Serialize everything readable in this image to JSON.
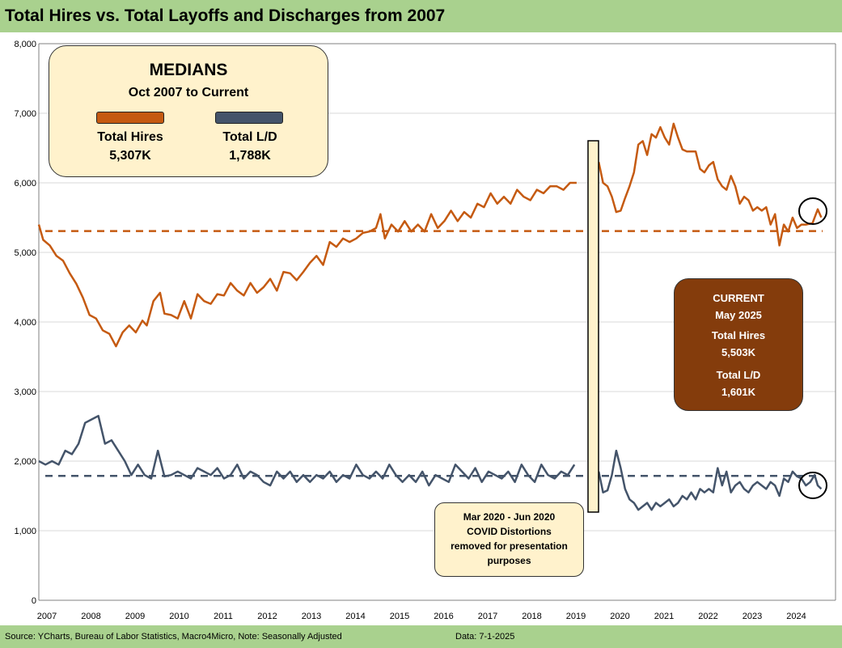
{
  "title": "Total Hires vs. Total Layoffs and Discharges from 2007",
  "footer": {
    "source": "Source: YCharts, Bureau of Labor Statistics, Macro4Micro, Note: Seasonally Adjusted",
    "data_date": "Data: 7-1-2025"
  },
  "medians_box": {
    "title": "MEDIANS",
    "subtitle": "Oct 2007 to Current",
    "hires_label": "Total Hires",
    "hires_value": "5,307K",
    "ld_label": "Total L/D",
    "ld_value": "1,788K"
  },
  "current_box": {
    "title": "CURRENT",
    "date": "May 2025",
    "hires_label": "Total Hires",
    "hires_value": "5,503K",
    "ld_label": "Total L/D",
    "ld_value": "1,601K"
  },
  "covid_box": {
    "line1": "Mar 2020 - Jun 2020",
    "line2": "COVID Distortions",
    "line3": "removed for presentation",
    "line4": "purposes"
  },
  "colors": {
    "hires": "#c55a11",
    "layoffs": "#44546a",
    "background": "#a9d18e",
    "current_box": "#843c0c",
    "note_box": "#fff2cc"
  },
  "chart_data": {
    "type": "line",
    "title": "Total Hires vs. Total Layoffs and Discharges from 2007",
    "xlabel": "",
    "ylabel": "",
    "ylim": [
      0,
      8000
    ],
    "y_ticks": [
      "0",
      "1,000",
      "2,000",
      "3,000",
      "4,000",
      "5,000",
      "6,000",
      "7,000",
      "8,000"
    ],
    "x_tick_labels": [
      "2007",
      "2008",
      "2009",
      "2010",
      "2011",
      "2012",
      "2013",
      "2014",
      "2015",
      "2016",
      "2017",
      "2018",
      "2019",
      "2020",
      "2021",
      "2022",
      "2023",
      "2024"
    ],
    "grid": true,
    "medians": {
      "hires": 5307,
      "layoffs": 1788
    },
    "series": [
      {
        "key": "hires",
        "points": [
          [
            2007.75,
            5400
          ],
          [
            2007.85,
            5180
          ],
          [
            2008.0,
            5100
          ],
          [
            2008.15,
            4950
          ],
          [
            2008.3,
            4880
          ],
          [
            2008.45,
            4700
          ],
          [
            2008.6,
            4550
          ],
          [
            2008.75,
            4350
          ],
          [
            2008.9,
            4100
          ],
          [
            2009.05,
            4050
          ],
          [
            2009.2,
            3880
          ],
          [
            2009.35,
            3830
          ],
          [
            2009.5,
            3650
          ],
          [
            2009.65,
            3850
          ],
          [
            2009.8,
            3950
          ],
          [
            2009.95,
            3850
          ],
          [
            2010.1,
            4020
          ],
          [
            2010.2,
            3950
          ],
          [
            2010.35,
            4300
          ],
          [
            2010.5,
            4420
          ],
          [
            2010.6,
            4120
          ],
          [
            2010.75,
            4100
          ],
          [
            2010.9,
            4050
          ],
          [
            2011.05,
            4300
          ],
          [
            2011.2,
            4050
          ],
          [
            2011.35,
            4400
          ],
          [
            2011.5,
            4300
          ],
          [
            2011.65,
            4260
          ],
          [
            2011.8,
            4400
          ],
          [
            2011.95,
            4380
          ],
          [
            2012.1,
            4560
          ],
          [
            2012.25,
            4450
          ],
          [
            2012.4,
            4380
          ],
          [
            2012.55,
            4560
          ],
          [
            2012.7,
            4420
          ],
          [
            2012.85,
            4500
          ],
          [
            2013.0,
            4620
          ],
          [
            2013.15,
            4450
          ],
          [
            2013.3,
            4720
          ],
          [
            2013.45,
            4700
          ],
          [
            2013.6,
            4600
          ],
          [
            2013.75,
            4720
          ],
          [
            2013.9,
            4850
          ],
          [
            2014.05,
            4950
          ],
          [
            2014.2,
            4820
          ],
          [
            2014.35,
            5150
          ],
          [
            2014.5,
            5080
          ],
          [
            2014.65,
            5200
          ],
          [
            2014.8,
            5150
          ],
          [
            2014.95,
            5200
          ],
          [
            2015.1,
            5280
          ],
          [
            2015.25,
            5300
          ],
          [
            2015.4,
            5350
          ],
          [
            2015.5,
            5550
          ],
          [
            2015.6,
            5200
          ],
          [
            2015.75,
            5400
          ],
          [
            2015.9,
            5300
          ],
          [
            2016.05,
            5450
          ],
          [
            2016.2,
            5300
          ],
          [
            2016.35,
            5400
          ],
          [
            2016.5,
            5300
          ],
          [
            2016.65,
            5550
          ],
          [
            2016.8,
            5350
          ],
          [
            2016.95,
            5450
          ],
          [
            2017.1,
            5600
          ],
          [
            2017.25,
            5450
          ],
          [
            2017.4,
            5580
          ],
          [
            2017.55,
            5500
          ],
          [
            2017.7,
            5700
          ],
          [
            2017.85,
            5650
          ],
          [
            2018.0,
            5850
          ],
          [
            2018.15,
            5700
          ],
          [
            2018.3,
            5800
          ],
          [
            2018.45,
            5700
          ],
          [
            2018.6,
            5900
          ],
          [
            2018.75,
            5800
          ],
          [
            2018.9,
            5750
          ],
          [
            2019.05,
            5900
          ],
          [
            2019.2,
            5850
          ],
          [
            2019.35,
            5950
          ],
          [
            2019.5,
            5950
          ],
          [
            2019.65,
            5900
          ],
          [
            2019.8,
            6000
          ],
          [
            2019.95,
            6000
          ],
          null,
          [
            2020.45,
            6300
          ],
          [
            2020.55,
            6000
          ],
          [
            2020.65,
            5950
          ],
          [
            2020.75,
            5800
          ],
          [
            2020.85,
            5580
          ],
          [
            2020.95,
            5600
          ],
          [
            2021.05,
            5780
          ],
          [
            2021.15,
            5950
          ],
          [
            2021.25,
            6150
          ],
          [
            2021.35,
            6550
          ],
          [
            2021.45,
            6600
          ],
          [
            2021.55,
            6400
          ],
          [
            2021.65,
            6700
          ],
          [
            2021.75,
            6650
          ],
          [
            2021.85,
            6800
          ],
          [
            2021.95,
            6650
          ],
          [
            2022.05,
            6550
          ],
          [
            2022.15,
            6850
          ],
          [
            2022.25,
            6650
          ],
          [
            2022.35,
            6480
          ],
          [
            2022.45,
            6450
          ],
          [
            2022.55,
            6450
          ],
          [
            2022.65,
            6450
          ],
          [
            2022.75,
            6200
          ],
          [
            2022.85,
            6150
          ],
          [
            2022.95,
            6250
          ],
          [
            2023.05,
            6300
          ],
          [
            2023.15,
            6050
          ],
          [
            2023.25,
            5950
          ],
          [
            2023.35,
            5900
          ],
          [
            2023.45,
            6100
          ],
          [
            2023.55,
            5950
          ],
          [
            2023.65,
            5700
          ],
          [
            2023.75,
            5800
          ],
          [
            2023.85,
            5750
          ],
          [
            2023.95,
            5600
          ],
          [
            2024.05,
            5650
          ],
          [
            2024.15,
            5600
          ],
          [
            2024.25,
            5650
          ],
          [
            2024.35,
            5400
          ],
          [
            2024.45,
            5550
          ],
          [
            2024.55,
            5100
          ],
          [
            2024.65,
            5400
          ],
          [
            2024.75,
            5300
          ],
          [
            2024.85,
            5500
          ],
          [
            2024.95,
            5350
          ],
          [
            2025.05,
            5400
          ],
          [
            2025.15,
            5400
          ],
          [
            2025.3,
            5420
          ],
          [
            2025.42,
            5620
          ],
          [
            2025.5,
            5503
          ]
        ]
      },
      {
        "key": "layoffs",
        "points": [
          [
            2007.75,
            2000
          ],
          [
            2007.9,
            1950
          ],
          [
            2008.05,
            2000
          ],
          [
            2008.2,
            1950
          ],
          [
            2008.35,
            2150
          ],
          [
            2008.5,
            2100
          ],
          [
            2008.65,
            2250
          ],
          [
            2008.8,
            2550
          ],
          [
            2008.95,
            2600
          ],
          [
            2009.1,
            2650
          ],
          [
            2009.25,
            2250
          ],
          [
            2009.4,
            2300
          ],
          [
            2009.55,
            2150
          ],
          [
            2009.7,
            2000
          ],
          [
            2009.85,
            1800
          ],
          [
            2010.0,
            1950
          ],
          [
            2010.15,
            1800
          ],
          [
            2010.3,
            1750
          ],
          [
            2010.45,
            2150
          ],
          [
            2010.6,
            1780
          ],
          [
            2010.75,
            1800
          ],
          [
            2010.9,
            1850
          ],
          [
            2011.05,
            1800
          ],
          [
            2011.2,
            1750
          ],
          [
            2011.35,
            1900
          ],
          [
            2011.5,
            1850
          ],
          [
            2011.65,
            1800
          ],
          [
            2011.8,
            1900
          ],
          [
            2011.95,
            1750
          ],
          [
            2012.1,
            1800
          ],
          [
            2012.25,
            1950
          ],
          [
            2012.4,
            1750
          ],
          [
            2012.55,
            1850
          ],
          [
            2012.7,
            1800
          ],
          [
            2012.85,
            1700
          ],
          [
            2013.0,
            1650
          ],
          [
            2013.15,
            1850
          ],
          [
            2013.3,
            1750
          ],
          [
            2013.45,
            1850
          ],
          [
            2013.6,
            1700
          ],
          [
            2013.75,
            1800
          ],
          [
            2013.9,
            1700
          ],
          [
            2014.05,
            1800
          ],
          [
            2014.2,
            1750
          ],
          [
            2014.35,
            1850
          ],
          [
            2014.5,
            1700
          ],
          [
            2014.65,
            1800
          ],
          [
            2014.8,
            1750
          ],
          [
            2014.95,
            1950
          ],
          [
            2015.1,
            1800
          ],
          [
            2015.25,
            1750
          ],
          [
            2015.4,
            1850
          ],
          [
            2015.55,
            1750
          ],
          [
            2015.7,
            1950
          ],
          [
            2015.85,
            1800
          ],
          [
            2016.0,
            1700
          ],
          [
            2016.15,
            1800
          ],
          [
            2016.3,
            1700
          ],
          [
            2016.45,
            1850
          ],
          [
            2016.6,
            1650
          ],
          [
            2016.75,
            1800
          ],
          [
            2016.9,
            1750
          ],
          [
            2017.05,
            1700
          ],
          [
            2017.2,
            1950
          ],
          [
            2017.35,
            1850
          ],
          [
            2017.5,
            1750
          ],
          [
            2017.65,
            1900
          ],
          [
            2017.8,
            1700
          ],
          [
            2017.95,
            1850
          ],
          [
            2018.1,
            1800
          ],
          [
            2018.25,
            1750
          ],
          [
            2018.4,
            1850
          ],
          [
            2018.55,
            1700
          ],
          [
            2018.7,
            1950
          ],
          [
            2018.85,
            1800
          ],
          [
            2019.0,
            1700
          ],
          [
            2019.15,
            1950
          ],
          [
            2019.3,
            1800
          ],
          [
            2019.45,
            1750
          ],
          [
            2019.6,
            1850
          ],
          [
            2019.75,
            1800
          ],
          [
            2019.9,
            1950
          ],
          null,
          [
            2020.45,
            1850
          ],
          [
            2020.55,
            1550
          ],
          [
            2020.65,
            1580
          ],
          [
            2020.75,
            1800
          ],
          [
            2020.85,
            2150
          ],
          [
            2020.95,
            1900
          ],
          [
            2021.05,
            1600
          ],
          [
            2021.15,
            1450
          ],
          [
            2021.25,
            1400
          ],
          [
            2021.35,
            1300
          ],
          [
            2021.45,
            1350
          ],
          [
            2021.55,
            1400
          ],
          [
            2021.65,
            1300
          ],
          [
            2021.75,
            1400
          ],
          [
            2021.85,
            1350
          ],
          [
            2021.95,
            1400
          ],
          [
            2022.05,
            1450
          ],
          [
            2022.15,
            1350
          ],
          [
            2022.25,
            1400
          ],
          [
            2022.35,
            1500
          ],
          [
            2022.45,
            1450
          ],
          [
            2022.55,
            1550
          ],
          [
            2022.65,
            1450
          ],
          [
            2022.75,
            1600
          ],
          [
            2022.85,
            1550
          ],
          [
            2022.95,
            1600
          ],
          [
            2023.05,
            1550
          ],
          [
            2023.15,
            1900
          ],
          [
            2023.25,
            1650
          ],
          [
            2023.35,
            1850
          ],
          [
            2023.45,
            1550
          ],
          [
            2023.55,
            1650
          ],
          [
            2023.65,
            1700
          ],
          [
            2023.75,
            1600
          ],
          [
            2023.85,
            1550
          ],
          [
            2023.95,
            1650
          ],
          [
            2024.05,
            1700
          ],
          [
            2024.15,
            1650
          ],
          [
            2024.25,
            1600
          ],
          [
            2024.35,
            1700
          ],
          [
            2024.45,
            1650
          ],
          [
            2024.55,
            1500
          ],
          [
            2024.65,
            1750
          ],
          [
            2024.75,
            1700
          ],
          [
            2024.85,
            1850
          ],
          [
            2024.95,
            1780
          ],
          [
            2025.05,
            1750
          ],
          [
            2025.15,
            1650
          ],
          [
            2025.25,
            1700
          ],
          [
            2025.35,
            1800
          ],
          [
            2025.42,
            1650
          ],
          [
            2025.5,
            1601
          ]
        ]
      }
    ]
  }
}
